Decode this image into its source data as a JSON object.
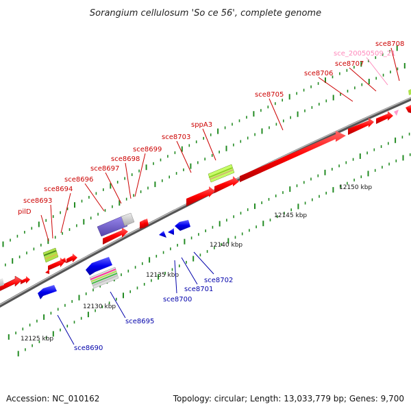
{
  "title": "Sorangium cellulosum 'So ce 56', complete genome",
  "footer": {
    "accession": "Accession: NC_010162",
    "summary": "Topology: circular; Length: 13,033,779 bp; Genes: 9,700"
  },
  "scale_labels": [
    "12125 kbp",
    "12130 kbp",
    "12135 kbp",
    "12140 kbp",
    "12145 kbp",
    "12150 kbp"
  ],
  "gene_labels_forward": [
    "pilD",
    "sce8693",
    "sce8694",
    "sce8696",
    "sce8697",
    "sce8698",
    "sce8699",
    "sce8703",
    "sppA3",
    "sce8705",
    "sce8706",
    "sce8707",
    "sce_20050509_21",
    "sce8708"
  ],
  "gene_labels_reverse": [
    "sce8690",
    "sce8695",
    "sce8700",
    "sce8701",
    "sce8702"
  ],
  "colors": {
    "forward": "#ff0000",
    "reverse": "#0000ee",
    "forward_label": "#cc0000",
    "reverse_label": "#0000aa",
    "rna_label": "#ff88bb",
    "backbone": "#888888",
    "tick": "#228b22"
  }
}
